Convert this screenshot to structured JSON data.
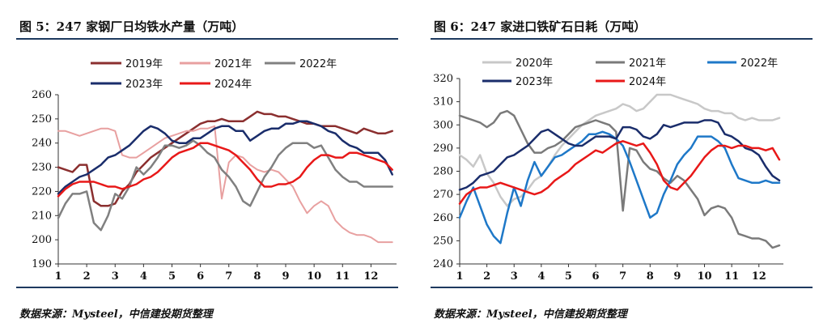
{
  "left": {
    "title": "图 5：247 家钢厂日均铁水产量（万吨）",
    "source": "数据来源：Mysteel，中信建投期货整理"
  },
  "right": {
    "title": "图 6：247 家进口铁矿石日耗（万吨）",
    "source": "数据来源：Mysteel，中信建投期货整理"
  },
  "chart_data": [
    {
      "type": "line",
      "title": "图 5：247 家钢厂日均铁水产量（万吨）",
      "ylim": [
        190,
        260
      ],
      "yticks": [
        190,
        200,
        210,
        220,
        230,
        240,
        250,
        260
      ],
      "xlim": [
        1,
        12.9
      ],
      "xticks": [
        "1",
        "2",
        "3",
        "4",
        "5",
        "6",
        "7",
        "8",
        "9",
        "10",
        "11",
        "12"
      ],
      "legend": "top",
      "series": [
        {
          "name": "2019年",
          "color": "#8b2f2f",
          "width": 2.5,
          "x": [
            1,
            1.25,
            1.5,
            1.75,
            2,
            2.25,
            2.5,
            2.75,
            3,
            3.25,
            3.5,
            3.75,
            4,
            4.25,
            4.5,
            4.75,
            5,
            5.25,
            5.5,
            5.75,
            6,
            6.25,
            6.5,
            6.75,
            7,
            7.25,
            7.5,
            7.75,
            8,
            8.25,
            8.5,
            8.75,
            9,
            9.25,
            9.5,
            9.75,
            10,
            10.25,
            10.5,
            10.75,
            11,
            11.25,
            11.5,
            11.75,
            12,
            12.25,
            12.5,
            12.75
          ],
          "y": [
            230,
            229,
            228,
            231,
            231,
            216,
            214,
            214,
            215,
            220,
            223,
            228,
            231,
            234,
            236,
            238,
            240,
            242,
            244,
            246,
            248,
            249,
            249,
            250,
            249,
            249,
            249,
            251,
            253,
            252,
            252,
            251,
            251,
            250,
            249,
            248,
            248,
            247,
            247,
            247,
            246,
            245,
            244,
            246,
            245,
            244,
            244,
            245
          ]
        },
        {
          "name": "2021年",
          "color": "#e8a0a0",
          "width": 2,
          "x": [
            1,
            1.25,
            1.5,
            1.75,
            2,
            2.25,
            2.5,
            2.75,
            3,
            3.25,
            3.5,
            3.75,
            4,
            4.25,
            4.5,
            4.75,
            5,
            5.25,
            5.5,
            5.75,
            6,
            6.25,
            6.5,
            6.75,
            7,
            7.25,
            7.5,
            7.75,
            8,
            8.25,
            8.5,
            8.75,
            9,
            9.25,
            9.5,
            9.75,
            10,
            10.25,
            10.5,
            10.75,
            11,
            11.25,
            11.5,
            11.75,
            12,
            12.25,
            12.5,
            12.75
          ],
          "y": [
            245,
            245,
            244,
            243,
            244,
            245,
            246,
            246,
            245,
            235,
            234,
            234,
            236,
            238,
            240,
            242,
            243,
            244,
            245,
            245,
            246,
            246,
            247,
            217,
            232,
            235,
            234,
            231,
            229,
            228,
            229,
            228,
            225,
            222,
            216,
            211,
            214,
            216,
            214,
            208,
            205,
            203,
            202,
            202,
            201,
            199,
            199,
            199
          ]
        },
        {
          "name": "2022年",
          "color": "#808080",
          "width": 2.5,
          "x": [
            1,
            1.25,
            1.5,
            1.75,
            2,
            2.25,
            2.5,
            2.75,
            3,
            3.25,
            3.5,
            3.75,
            4,
            4.25,
            4.5,
            4.75,
            5,
            5.25,
            5.5,
            5.75,
            6,
            6.25,
            6.5,
            6.75,
            7,
            7.25,
            7.5,
            7.75,
            8,
            8.25,
            8.5,
            8.75,
            9,
            9.25,
            9.5,
            9.75,
            10,
            10.25,
            10.5,
            10.75,
            11,
            11.25,
            11.5,
            11.75,
            12,
            12.25,
            12.5,
            12.75
          ],
          "y": [
            209,
            215,
            219,
            219,
            220,
            207,
            204,
            210,
            219,
            217,
            222,
            230,
            227,
            230,
            234,
            239,
            239,
            238,
            239,
            241,
            239,
            236,
            234,
            229,
            226,
            222,
            216,
            214,
            220,
            226,
            230,
            235,
            238,
            240,
            240,
            240,
            238,
            239,
            234,
            229,
            226,
            224,
            224,
            222,
            222,
            222,
            222,
            222
          ]
        },
        {
          "name": "2023年",
          "color": "#1a2d6b",
          "width": 2.5,
          "x": [
            1,
            1.25,
            1.5,
            1.75,
            2,
            2.25,
            2.5,
            2.75,
            3,
            3.25,
            3.5,
            3.75,
            4,
            4.25,
            4.5,
            4.75,
            5,
            5.25,
            5.5,
            5.75,
            6,
            6.25,
            6.5,
            6.75,
            7,
            7.25,
            7.5,
            7.75,
            8,
            8.25,
            8.5,
            8.75,
            9,
            9.25,
            9.5,
            9.75,
            10,
            10.25,
            10.5,
            10.75,
            11,
            11.25,
            11.5,
            11.75,
            12,
            12.25,
            12.5,
            12.75
          ],
          "y": [
            219,
            222,
            224,
            226,
            227,
            229,
            231,
            234,
            235,
            237,
            239,
            242,
            245,
            247,
            246,
            244,
            241,
            240,
            240,
            242,
            242,
            244,
            246,
            247,
            247,
            245,
            245,
            241,
            243,
            245,
            246,
            246,
            248,
            248,
            249,
            249,
            248,
            247,
            245,
            244,
            241,
            239,
            238,
            236,
            236,
            236,
            233,
            227
          ]
        },
        {
          "name": "2024年",
          "color": "#e81818",
          "width": 2.5,
          "x": [
            1,
            1.25,
            1.5,
            1.75,
            2,
            2.25,
            2.5,
            2.75,
            3,
            3.25,
            3.5,
            3.75,
            4,
            4.25,
            4.5,
            4.75,
            5,
            5.25,
            5.5,
            5.75,
            6,
            6.25,
            6.5,
            6.75,
            7,
            7.25,
            7.5,
            7.75,
            8,
            8.25,
            8.5,
            8.75,
            9,
            9.25,
            9.5,
            9.75,
            10,
            10.25,
            10.5,
            10.75,
            11,
            11.25,
            11.5,
            11.75,
            12,
            12.25,
            12.5,
            12.75
          ],
          "y": [
            218,
            221,
            223,
            224,
            224,
            224,
            223,
            222,
            222,
            221,
            222,
            223,
            225,
            226,
            228,
            231,
            234,
            236,
            237,
            238,
            240,
            240,
            239,
            238,
            237,
            235,
            232,
            229,
            225,
            222,
            222,
            223,
            223,
            224,
            226,
            230,
            233,
            235,
            235,
            234,
            234,
            236,
            236,
            235,
            234,
            233,
            232,
            229
          ]
        }
      ]
    },
    {
      "type": "line",
      "title": "图 6：247 家进口铁矿石日耗（万吨）",
      "ylim": [
        240,
        320
      ],
      "yticks": [
        240,
        250,
        260,
        270,
        280,
        290,
        300,
        310,
        320
      ],
      "xlim": [
        1,
        12.9
      ],
      "xticks": [
        "1",
        "2",
        "3",
        "4",
        "5",
        "6",
        "7",
        "8",
        "9",
        "10",
        "11",
        "12"
      ],
      "legend": "top",
      "series": [
        {
          "name": "2020年",
          "color": "#c8c8c8",
          "width": 2.5,
          "x": [
            1,
            1.25,
            1.5,
            1.75,
            2,
            2.25,
            2.5,
            2.75,
            3,
            3.25,
            3.5,
            3.75,
            4,
            4.25,
            4.5,
            4.75,
            5,
            5.25,
            5.5,
            5.75,
            6,
            6.25,
            6.5,
            6.75,
            7,
            7.25,
            7.5,
            7.75,
            8,
            8.25,
            8.5,
            8.75,
            9,
            9.25,
            9.5,
            9.75,
            10,
            10.25,
            10.5,
            10.75,
            11,
            11.25,
            11.5,
            11.75,
            12,
            12.25,
            12.5,
            12.75
          ],
          "y": [
            287,
            285,
            282,
            287,
            279,
            275,
            269,
            265,
            268,
            269,
            272,
            276,
            278,
            282,
            287,
            291,
            294,
            297,
            300,
            302,
            304,
            305,
            306,
            307,
            309,
            308,
            306,
            307,
            310,
            313,
            313,
            313,
            312,
            311,
            310,
            309,
            307,
            306,
            306,
            305,
            305,
            303,
            302,
            303,
            302,
            302,
            302,
            303
          ]
        },
        {
          "name": "2021年",
          "color": "#7a7a7a",
          "width": 2.5,
          "x": [
            1,
            1.25,
            1.5,
            1.75,
            2,
            2.25,
            2.5,
            2.75,
            3,
            3.25,
            3.5,
            3.75,
            4,
            4.25,
            4.5,
            4.75,
            5,
            5.25,
            5.5,
            5.75,
            6,
            6.25,
            6.5,
            6.75,
            7,
            7.25,
            7.5,
            7.75,
            8,
            8.25,
            8.5,
            8.75,
            9,
            9.25,
            9.5,
            9.75,
            10,
            10.25,
            10.5,
            10.75,
            11,
            11.25,
            11.5,
            11.75,
            12,
            12.25,
            12.5,
            12.75
          ],
          "y": [
            304,
            303,
            302,
            301,
            299,
            301,
            305,
            306,
            304,
            298,
            292,
            288,
            288,
            290,
            291,
            293,
            296,
            299,
            300,
            301,
            302,
            301,
            300,
            297,
            263,
            290,
            289,
            284,
            281,
            280,
            277,
            275,
            278,
            276,
            272,
            268,
            261,
            264,
            265,
            264,
            260,
            253,
            252,
            251,
            251,
            250,
            247,
            248
          ]
        },
        {
          "name": "2022年",
          "color": "#1e78c8",
          "width": 2.5,
          "x": [
            1,
            1.25,
            1.5,
            1.75,
            2,
            2.25,
            2.5,
            2.75,
            3,
            3.25,
            3.5,
            3.75,
            4,
            4.25,
            4.5,
            4.75,
            5,
            5.25,
            5.5,
            5.75,
            6,
            6.25,
            6.5,
            6.75,
            7,
            7.25,
            7.5,
            7.75,
            8,
            8.25,
            8.5,
            8.75,
            9,
            9.25,
            9.5,
            9.75,
            10,
            10.25,
            10.5,
            10.75,
            11,
            11.25,
            11.5,
            11.75,
            12,
            12.25,
            12.5,
            12.75
          ],
          "y": [
            260,
            267,
            273,
            265,
            257,
            252,
            249,
            262,
            273,
            265,
            276,
            284,
            278,
            282,
            286,
            287,
            289,
            291,
            293,
            296,
            296,
            297,
            296,
            294,
            291,
            284,
            276,
            268,
            260,
            262,
            270,
            276,
            283,
            287,
            290,
            295,
            295,
            295,
            293,
            290,
            283,
            277,
            276,
            275,
            275,
            276,
            275,
            275
          ]
        },
        {
          "name": "2023年",
          "color": "#1a2d6b",
          "width": 2.5,
          "x": [
            1,
            1.25,
            1.5,
            1.75,
            2,
            2.25,
            2.5,
            2.75,
            3,
            3.25,
            3.5,
            3.75,
            4,
            4.25,
            4.5,
            4.75,
            5,
            5.25,
            5.5,
            5.75,
            6,
            6.25,
            6.5,
            6.75,
            7,
            7.25,
            7.5,
            7.75,
            8,
            8.25,
            8.5,
            8.75,
            9,
            9.25,
            9.5,
            9.75,
            10,
            10.25,
            10.5,
            10.75,
            11,
            11.25,
            11.5,
            11.75,
            12,
            12.25,
            12.5,
            12.75
          ],
          "y": [
            272,
            273,
            275,
            278,
            279,
            280,
            283,
            286,
            287,
            289,
            291,
            294,
            297,
            298,
            296,
            294,
            292,
            291,
            291,
            293,
            295,
            295,
            295,
            294,
            299,
            299,
            298,
            295,
            294,
            296,
            300,
            299,
            300,
            301,
            301,
            301,
            302,
            302,
            301,
            296,
            295,
            293,
            290,
            289,
            287,
            282,
            278,
            276
          ]
        },
        {
          "name": "2024年",
          "color": "#e81818",
          "width": 2.5,
          "x": [
            1,
            1.25,
            1.5,
            1.75,
            2,
            2.25,
            2.5,
            2.75,
            3,
            3.25,
            3.5,
            3.75,
            4,
            4.25,
            4.5,
            4.75,
            5,
            5.25,
            5.5,
            5.75,
            6,
            6.25,
            6.5,
            6.75,
            7,
            7.25,
            7.5,
            7.75,
            8,
            8.25,
            8.5,
            8.75,
            9,
            9.25,
            9.5,
            9.75,
            10,
            10.25,
            10.5,
            10.75,
            11,
            11.25,
            11.5,
            11.75,
            12,
            12.25,
            12.5,
            12.75
          ],
          "y": [
            266,
            270,
            272,
            273,
            273,
            274,
            275,
            274,
            273,
            272,
            271,
            270,
            271,
            273,
            276,
            278,
            280,
            283,
            285,
            287,
            289,
            288,
            290,
            292,
            293,
            292,
            291,
            292,
            288,
            283,
            276,
            273,
            272,
            275,
            278,
            282,
            286,
            289,
            291,
            291,
            290,
            291,
            291,
            290,
            290,
            289,
            290,
            285
          ]
        }
      ]
    }
  ]
}
